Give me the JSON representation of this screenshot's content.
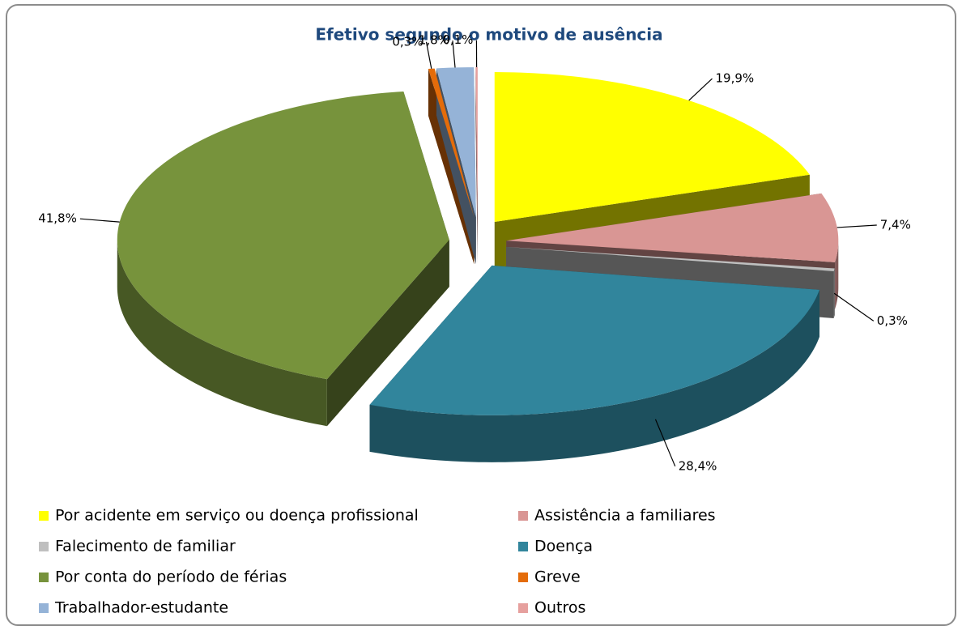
{
  "chart_data": {
    "type": "pie",
    "title": "Efetivo segundo o motivo de ausência",
    "categories": [
      "Por acidente em serviço ou doença profissional",
      "Assistência a familiares",
      "Falecimento de familiar",
      "Doença",
      "Por conta do período de férias",
      "Greve",
      "Trabalhador-estudante",
      "Outros"
    ],
    "values": [
      19.9,
      7.4,
      0.3,
      28.4,
      41.8,
      0.3,
      1.8,
      0.1
    ],
    "value_labels": [
      "19,9%",
      "7,4%",
      "0,3%",
      "28,4%",
      "41,8%",
      "0,3%",
      "1,8%",
      "0,1%"
    ],
    "colors": [
      "#ffff00",
      "#d99694",
      "#bfbfbf",
      "#31859c",
      "#77933c",
      "#e46c0a",
      "#95b3d7",
      "#e6a09e"
    ],
    "legend": "bottom",
    "three_d": true,
    "exploded": true
  }
}
